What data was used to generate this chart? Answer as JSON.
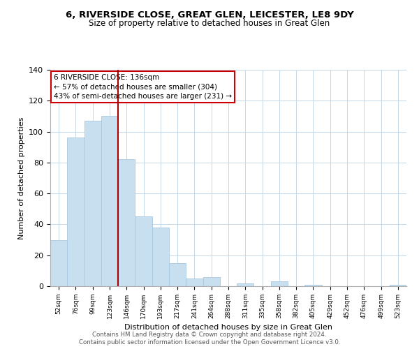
{
  "title": "6, RIVERSIDE CLOSE, GREAT GLEN, LEICESTER, LE8 9DY",
  "subtitle": "Size of property relative to detached houses in Great Glen",
  "xlabel": "Distribution of detached houses by size in Great Glen",
  "ylabel": "Number of detached properties",
  "categories": [
    "52sqm",
    "76sqm",
    "99sqm",
    "123sqm",
    "146sqm",
    "170sqm",
    "193sqm",
    "217sqm",
    "241sqm",
    "264sqm",
    "288sqm",
    "311sqm",
    "335sqm",
    "358sqm",
    "382sqm",
    "405sqm",
    "429sqm",
    "452sqm",
    "476sqm",
    "499sqm",
    "523sqm"
  ],
  "values": [
    30,
    96,
    107,
    110,
    82,
    45,
    38,
    15,
    5,
    6,
    0,
    2,
    0,
    3,
    0,
    1,
    0,
    0,
    0,
    0,
    1
  ],
  "bar_color": "#c8dff0",
  "bar_edge_color": "#a8c8e0",
  "vline_x": 3.5,
  "vline_color": "#aa0000",
  "annotation_title": "6 RIVERSIDE CLOSE: 136sqm",
  "annotation_line1": "← 57% of detached houses are smaller (304)",
  "annotation_line2": "43% of semi-detached houses are larger (231) →",
  "ylim": [
    0,
    140
  ],
  "yticks": [
    0,
    20,
    40,
    60,
    80,
    100,
    120,
    140
  ],
  "footer1": "Contains HM Land Registry data © Crown copyright and database right 2024.",
  "footer2": "Contains public sector information licensed under the Open Government Licence v3.0."
}
